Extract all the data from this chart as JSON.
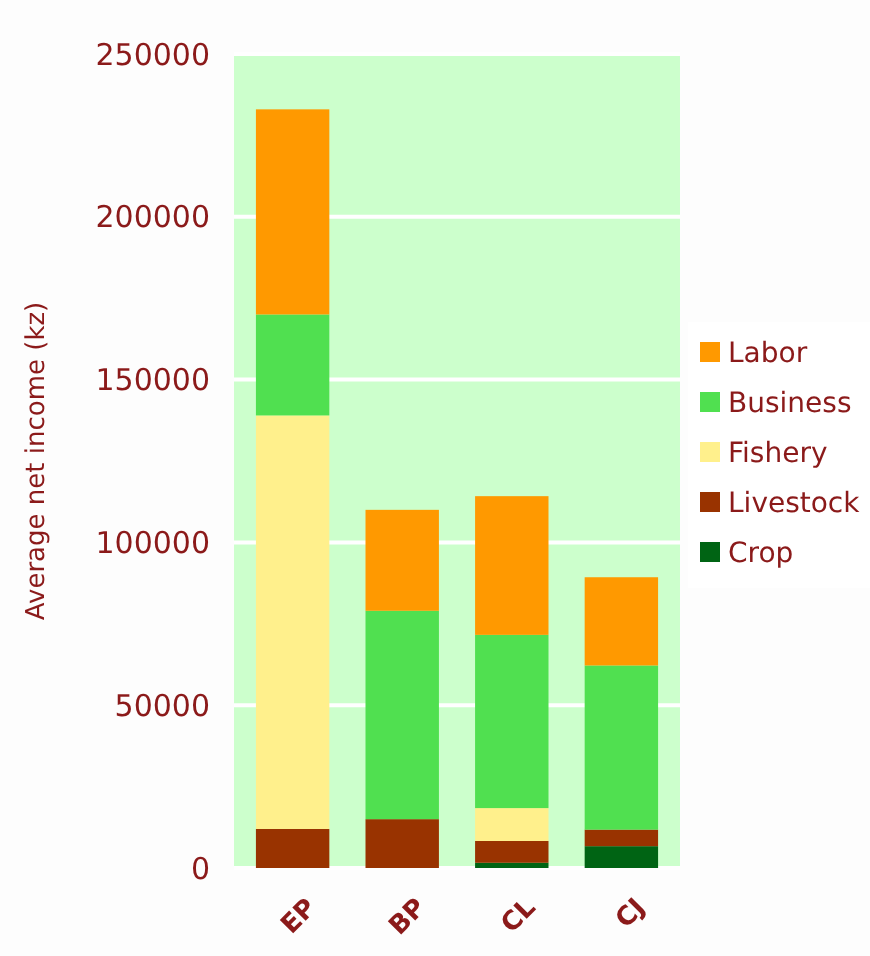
{
  "chart_data": {
    "type": "bar",
    "stacked": true,
    "ylabel": "Average net income (kz)",
    "categories": [
      "EP",
      "BP",
      "CL",
      "CJ"
    ],
    "series": [
      {
        "name": "Crop",
        "color": "#006414",
        "values": [
          0,
          0,
          1600,
          6700
        ]
      },
      {
        "name": "Livestock",
        "color": "#993300",
        "values": [
          12000,
          15000,
          6700,
          5100
        ]
      },
      {
        "name": "Fishery",
        "color": "#fff08c",
        "values": [
          127000,
          0,
          10100,
          0
        ]
      },
      {
        "name": "Business",
        "color": "#50e050",
        "values": [
          31000,
          64000,
          53200,
          50400
        ]
      },
      {
        "name": "Labor",
        "color": "#ff9900",
        "values": [
          63000,
          31000,
          42600,
          27100
        ]
      }
    ],
    "ylim": [
      0,
      250000
    ],
    "yticks": [
      0,
      50000,
      100000,
      150000,
      200000,
      250000
    ],
    "grid": "y",
    "legend": "right"
  }
}
